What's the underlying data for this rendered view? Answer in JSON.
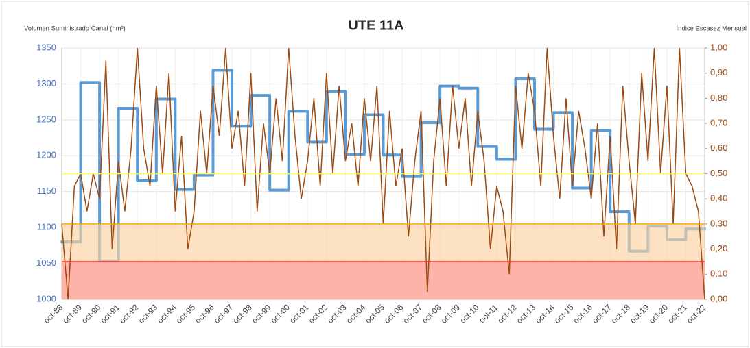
{
  "chart_data": {
    "type": "step-line",
    "title": "UTE 11A",
    "y_label": "Volumen Suministrado Canal (hm³)",
    "y2_label": "Índice Escasez Mensual",
    "categories": [
      "oct-88",
      null,
      null,
      "oct-89",
      null,
      null,
      "oct-90",
      null,
      null,
      "oct-91",
      null,
      null,
      "oct-92",
      null,
      null,
      "oct-93",
      null,
      null,
      "oct-94",
      null,
      null,
      "oct-95",
      null,
      null,
      "oct-96",
      null,
      null,
      "oct-97",
      null,
      null,
      "oct-98",
      null,
      null,
      "oct-99",
      null,
      null,
      "oct-00",
      null,
      null,
      "oct-01",
      null,
      null,
      "oct-02",
      null,
      null,
      "oct-03",
      null,
      null,
      "oct-04",
      null,
      null,
      "oct-05",
      null,
      null,
      "oct-06",
      null,
      null,
      "oct-07",
      null,
      null,
      "oct-08",
      null,
      null,
      "oct-09",
      null,
      null,
      "oct-10",
      null,
      null,
      "oct-11",
      null,
      null,
      "oct-12",
      null,
      null,
      "oct-13",
      null,
      null,
      "oct-14",
      null,
      null,
      "oct-15",
      null,
      null,
      "oct-16",
      null,
      null,
      "oct-17",
      null,
      null,
      "oct-18",
      null,
      null,
      "oct-19",
      null,
      null,
      "oct-20",
      null,
      null,
      "oct-21",
      null,
      null,
      "oct-22"
    ],
    "series": [
      {
        "type": "step",
        "color": "#5b9bd5",
        "axis": "y",
        "values": [
          1080,
          1080,
          1080,
          1302,
          1302,
          1302,
          1053,
          1053,
          1053,
          1266,
          1266,
          1266,
          1165,
          1165,
          1165,
          1279,
          1279,
          1279,
          1153,
          1153,
          1153,
          1173,
          1173,
          1173,
          1319,
          1319,
          1319,
          1241,
          1241,
          1241,
          1284,
          1284,
          1284,
          1152,
          1152,
          1152,
          1262,
          1262,
          1262,
          1219,
          1219,
          1219,
          1289,
          1289,
          1289,
          1202,
          1202,
          1202,
          1257,
          1257,
          1257,
          1201,
          1201,
          1201,
          1171,
          1171,
          1171,
          1246,
          1246,
          1246,
          1297,
          1297,
          1297,
          1294,
          1294,
          1294,
          1213,
          1213,
          1213,
          1195,
          1195,
          1195,
          1307,
          1307,
          1307,
          1237,
          1237,
          1237,
          1260,
          1260,
          1260,
          1155,
          1155,
          1155,
          1235,
          1235,
          1235,
          1122,
          1122,
          1122,
          1067,
          1067,
          1067,
          1102,
          1102,
          1102,
          1083,
          1083,
          1083,
          1098,
          1098,
          1098,
          null
        ]
      },
      {
        "type": "line",
        "color": "#9c4a12",
        "axis": "y2",
        "values": [
          0.3,
          0.0,
          0.45,
          0.5,
          0.35,
          0.5,
          0.4,
          0.95,
          0.2,
          0.55,
          0.35,
          0.6,
          1.0,
          0.6,
          0.45,
          0.85,
          0.5,
          0.9,
          0.35,
          0.65,
          0.2,
          0.35,
          0.75,
          0.5,
          0.85,
          0.65,
          1.0,
          0.6,
          0.75,
          0.45,
          0.9,
          0.35,
          0.7,
          0.5,
          0.8,
          0.55,
          1.0,
          0.65,
          0.4,
          0.55,
          0.8,
          0.45,
          0.9,
          0.5,
          0.85,
          0.55,
          0.7,
          0.45,
          0.8,
          0.55,
          0.85,
          0.3,
          0.75,
          0.45,
          0.6,
          0.25,
          0.55,
          0.75,
          0.03,
          0.55,
          0.8,
          0.45,
          0.85,
          0.6,
          0.8,
          0.45,
          0.75,
          0.55,
          0.2,
          0.45,
          0.35,
          0.1,
          0.85,
          0.6,
          0.9,
          0.75,
          0.45,
          1.0,
          0.65,
          0.4,
          0.8,
          0.45,
          0.75,
          0.6,
          0.4,
          0.7,
          0.25,
          0.65,
          0.2,
          0.85,
          0.55,
          0.3,
          0.9,
          0.55,
          1.0,
          0.5,
          0.85,
          0.3,
          1.0,
          0.5,
          0.45,
          0.35,
          0.0
        ]
      }
    ],
    "thresholds": [
      {
        "axis": "y2",
        "value": 0.3,
        "color": "#ffa500",
        "fill": "#fbd3a2"
      },
      {
        "axis": "y2",
        "value": 0.15,
        "color": "#ff2020",
        "fill": "#ff9a9a"
      },
      {
        "axis": "y2",
        "value": 0.5,
        "color": "#ffff33"
      }
    ],
    "ylim": [
      1000,
      1350
    ],
    "yticks": [
      1000,
      1050,
      1100,
      1150,
      1200,
      1250,
      1300,
      1350
    ],
    "y2lim": [
      0,
      1
    ],
    "y2ticks": [
      {
        "value": 0,
        "label": "0,00"
      },
      {
        "value": 0.1,
        "label": "0,10"
      },
      {
        "value": 0.2,
        "label": "0,20"
      },
      {
        "value": 0.3,
        "label": "0,30"
      },
      {
        "value": 0.4,
        "label": "0,40"
      },
      {
        "value": 0.5,
        "label": "0,50"
      },
      {
        "value": 0.6,
        "label": "0,60"
      },
      {
        "value": 0.7,
        "label": "0,70"
      },
      {
        "value": 0.8,
        "label": "0,80"
      },
      {
        "value": 0.9,
        "label": "0,90"
      },
      {
        "value": 1,
        "label": "1,00"
      }
    ],
    "grid": true
  }
}
